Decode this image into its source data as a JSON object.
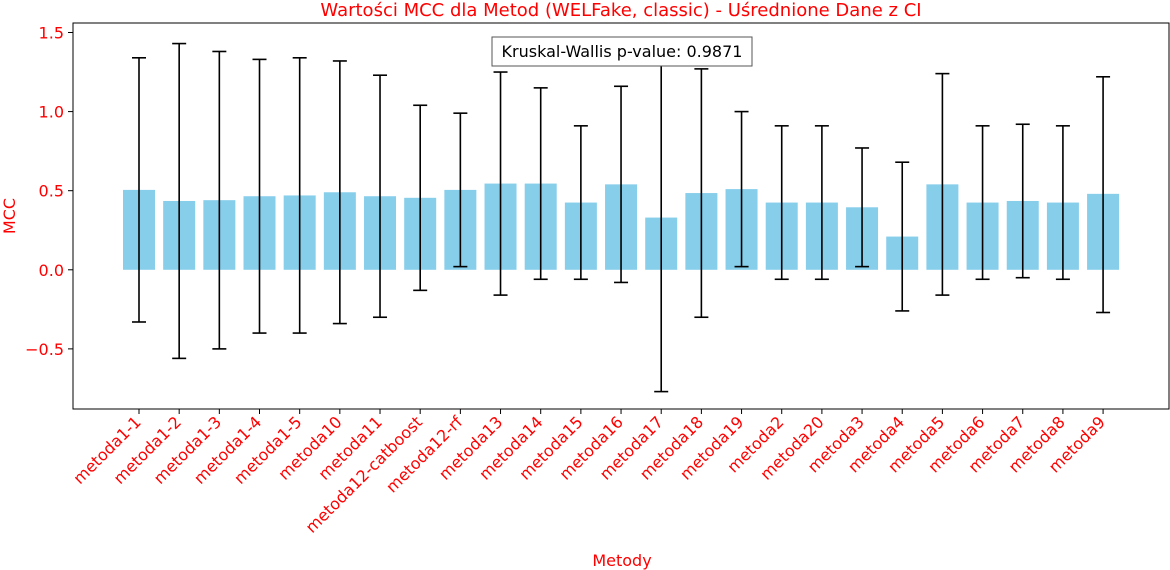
{
  "chart_data": {
    "type": "bar",
    "title": "Wartości MCC dla Metod (WELFake, classic) - Uśrednione Dane z CI",
    "xlabel": "Metody",
    "ylabel": "MCC",
    "ylim": [
      -0.88,
      1.56
    ],
    "yticks": [
      -0.5,
      0.0,
      0.5,
      1.0,
      1.5
    ],
    "ytick_labels": [
      "−0.5",
      "0.0",
      "0.5",
      "1.0",
      "1.5"
    ],
    "grid": false,
    "annotation": "Kruskal-Wallis p-value: 0.9871",
    "categories": [
      "metoda1-1",
      "metoda1-2",
      "metoda1-3",
      "metoda1-4",
      "metoda1-5",
      "metoda10",
      "metoda11",
      "metoda12-catboost",
      "metoda12-rf",
      "metoda13",
      "metoda14",
      "metoda15",
      "metoda16",
      "metoda17",
      "metoda18",
      "metoda19",
      "metoda2",
      "metoda20",
      "metoda3",
      "metoda4",
      "metoda5",
      "metoda6",
      "metoda7",
      "metoda8",
      "metoda9"
    ],
    "values": [
      0.505,
      0.435,
      0.44,
      0.465,
      0.47,
      0.49,
      0.465,
      0.455,
      0.505,
      0.545,
      0.545,
      0.425,
      0.54,
      0.33,
      0.485,
      0.51,
      0.425,
      0.425,
      0.395,
      0.21,
      0.54,
      0.425,
      0.435,
      0.425,
      0.48
    ],
    "ci_low": [
      -0.33,
      -0.56,
      -0.5,
      -0.4,
      -0.4,
      -0.34,
      -0.3,
      -0.13,
      0.02,
      -0.16,
      -0.06,
      -0.06,
      -0.08,
      -0.77,
      -0.3,
      0.02,
      -0.06,
      -0.06,
      0.02,
      -0.26,
      -0.16,
      -0.06,
      -0.05,
      -0.06,
      -0.27
    ],
    "ci_high": [
      1.34,
      1.43,
      1.38,
      1.33,
      1.34,
      1.32,
      1.23,
      1.04,
      0.99,
      1.25,
      1.15,
      0.91,
      1.16,
      1.43,
      1.27,
      1.0,
      0.91,
      0.91,
      0.77,
      0.68,
      1.24,
      0.91,
      0.92,
      0.91,
      1.22
    ],
    "colors": {
      "bar": "#87ceeb",
      "text": "#ff0000",
      "errorbar": "#000000"
    }
  }
}
